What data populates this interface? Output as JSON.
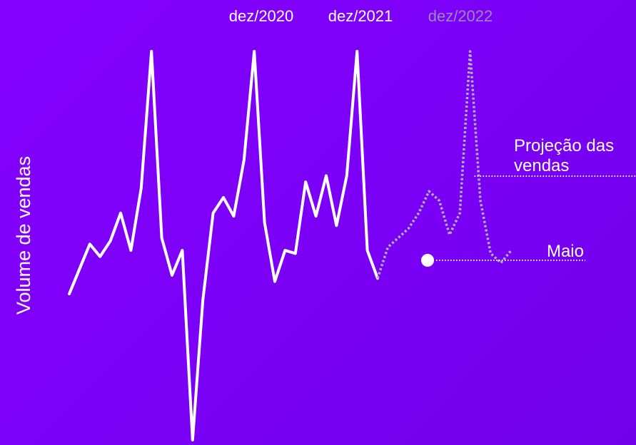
{
  "chart_data": {
    "type": "line",
    "title": "",
    "xlabel": "",
    "ylabel": "Volume de vendas",
    "x_tick_labels": [
      "dez/2020",
      "dez/2021",
      "dez/2022"
    ],
    "ylim": [
      0,
      100
    ],
    "series": [
      {
        "style": "solid",
        "color": "#ffffff",
        "values": [
          22,
          30,
          38,
          34,
          39,
          48,
          36,
          56,
          100,
          40,
          28,
          36,
          -25,
          20,
          48,
          53,
          47,
          65,
          100,
          45,
          26,
          36,
          35,
          58,
          47,
          60,
          44,
          60,
          100,
          36,
          27
        ]
      },
      {
        "style": "dotted",
        "color": "#b0b0c0",
        "values": [
          27,
          37,
          40,
          43,
          48,
          55,
          52,
          41,
          48,
          100,
          52,
          35,
          32,
          36
        ]
      }
    ],
    "annotations": [
      {
        "text": "Projeção das vendas",
        "line1": "Projeção das",
        "line2": "vendas",
        "color": "#ffffff"
      },
      {
        "text": "Maio",
        "color": "#ffffff"
      }
    ],
    "colors": {
      "primary_text": "#ffffff",
      "faded_text": "#9a8ab8",
      "projection_line": "#b0b0c0"
    }
  }
}
